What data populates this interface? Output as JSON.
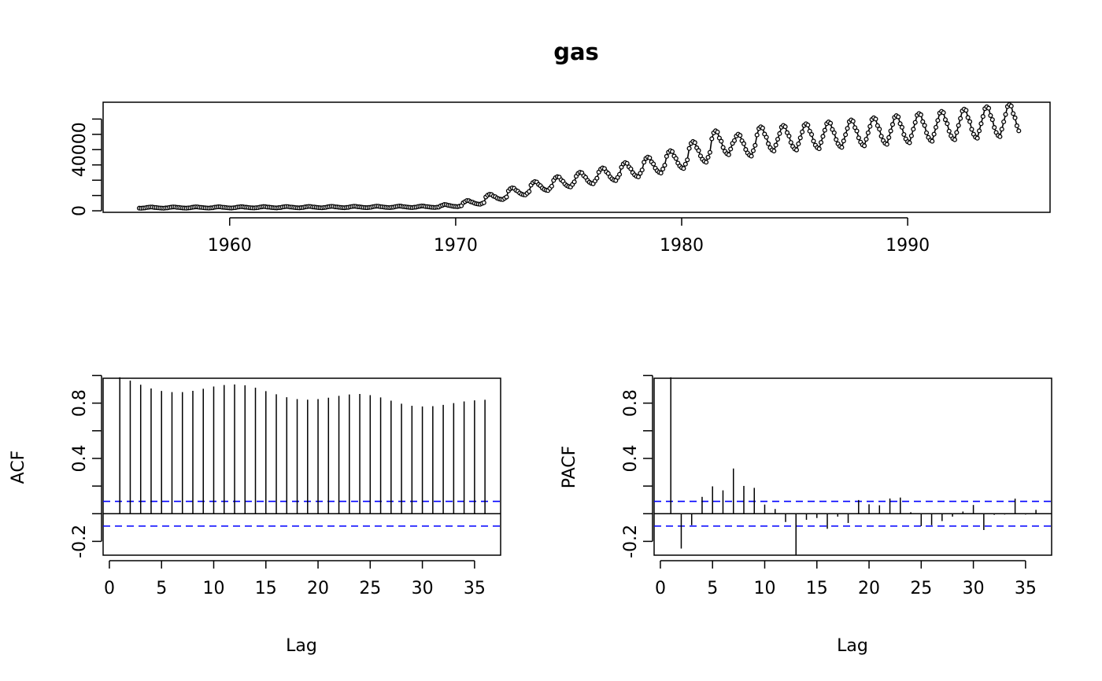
{
  "chart_data": [
    {
      "type": "line",
      "title": "gas",
      "xlabel": "",
      "ylabel": "",
      "xlim": [
        1954.4,
        1996.3
      ],
      "ylim": [
        -1000,
        71000
      ],
      "x_ticks": [
        "1960",
        "1970",
        "1980",
        "1990"
      ],
      "x_tick_values": [
        1960,
        1970,
        1980,
        1990
      ],
      "y_ticks": [
        "0",
        "40000"
      ],
      "y_tick_values": [
        0,
        40000
      ],
      "y_minor_tick_values": [
        10000,
        20000,
        30000,
        50000,
        60000
      ],
      "frequency": 12,
      "start": 1956,
      "series": [
        {
          "name": "gas",
          "marker": "open-circle",
          "values": [
            1709,
            1646,
            1794,
            1878,
            2173,
            2321,
            2468,
            2416,
            2184,
            2121,
            1962,
            1825,
            1751,
            1688,
            1837,
            1920,
            2215,
            2374,
            2520,
            2466,
            2234,
            2171,
            2011,
            1873,
            1790,
            1727,
            1876,
            1961,
            2263,
            2425,
            2575,
            2520,
            2281,
            2216,
            2052,
            1912,
            1829,
            1764,
            1917,
            2003,
            2311,
            2476,
            2629,
            2573,
            2329,
            2262,
            2095,
            1952,
            1868,
            1802,
            1957,
            2045,
            2359,
            2527,
            2683,
            2626,
            2377,
            2309,
            2138,
            1992,
            1906,
            1839,
            1997,
            2087,
            2407,
            2579,
            2738,
            2679,
            2425,
            2356,
            2181,
            2032,
            1945,
            1876,
            2038,
            2129,
            2456,
            2632,
            2794,
            2734,
            2474,
            2403,
            2225,
            2073,
            1985,
            1914,
            2079,
            2172,
            2506,
            2685,
            2851,
            2789,
            2524,
            2451,
            2270,
            2115,
            2024,
            1952,
            2121,
            2216,
            2556,
            2739,
            2908,
            2845,
            2575,
            2500,
            2315,
            2157,
            2065,
            1991,
            2163,
            2260,
            2607,
            2794,
            2966,
            2902,
            2626,
            2550,
            2361,
            2200,
            2106,
            2031,
            2206,
            2305,
            2659,
            2850,
            3026,
            2960,
            2679,
            2601,
            2408,
            2244,
            2148,
            2071,
            2250,
            2351,
            2712,
            2907,
            3086,
            3019,
            2732,
            2653,
            2456,
            2289,
            2191,
            2113,
            2295,
            2398,
            2766,
            2965,
            3148,
            3080,
            2787,
            2706,
            2505,
            2335,
            2234,
            2155,
            2341,
            2446,
            3200,
            3600,
            4100,
            4000,
            3600,
            3400,
            3100,
            2900,
            2800,
            2700,
            3000,
            3300,
            5200,
            6000,
            6700,
            6600,
            5900,
            5600,
            5000,
            4600,
            4400,
            4300,
            4800,
            5300,
            9000,
            10200,
            10800,
            10600,
            9600,
            9200,
            8300,
            7800,
            7500,
            7400,
            8200,
            9000,
            13000,
            14400,
            15000,
            14700,
            13400,
            12800,
            11600,
            10900,
            10500,
            10400,
            11500,
            12600,
            16800,
            18400,
            19100,
            18800,
            17200,
            16400,
            14900,
            14000,
            13500,
            13300,
            14700,
            16100,
            19900,
            21600,
            22300,
            22000,
            20200,
            19300,
            17500,
            16500,
            15900,
            15600,
            17200,
            18900,
            22600,
            24400,
            25200,
            24800,
            22900,
            21900,
            19900,
            18700,
            18000,
            17700,
            19500,
            21300,
            25300,
            27200,
            28000,
            27600,
            25500,
            24400,
            22200,
            20900,
            20100,
            19800,
            21800,
            23800,
            28500,
            30600,
            31500,
            31000,
            28700,
            27400,
            25000,
            23500,
            22600,
            22200,
            24500,
            26700,
            31800,
            34200,
            35100,
            34600,
            32000,
            30600,
            27900,
            26200,
            25200,
            24700,
            27300,
            29800,
            35600,
            38300,
            39300,
            38700,
            35800,
            34200,
            31200,
            29300,
            28200,
            27700,
            30500,
            33300,
            40800,
            44100,
            45300,
            44600,
            41200,
            39400,
            35900,
            33700,
            32400,
            31800,
            35000,
            38200,
            47100,
            51000,
            52300,
            51500,
            47600,
            45500,
            41400,
            38900,
            37400,
            36700,
            40400,
            44100,
            45900,
            48900,
            50100,
            49300,
            45800,
            43900,
            40100,
            37800,
            36400,
            35800,
            39300,
            42800,
            49600,
            53800,
            54900,
            54100,
            50200,
            48100,
            43900,
            41300,
            39800,
            39100,
            43000,
            46800,
            50500,
            54700,
            55800,
            55000,
            51100,
            48900,
            44700,
            42100,
            40500,
            39800,
            43800,
            47700,
            51600,
            55800,
            56900,
            56100,
            52100,
            49900,
            45600,
            42900,
            41300,
            40600,
            44700,
            48700,
            52700,
            57000,
            58100,
            57300,
            53200,
            51000,
            46600,
            43800,
            42200,
            41500,
            45700,
            49800,
            53900,
            58300,
            59400,
            58600,
            54400,
            52200,
            47700,
            44900,
            43200,
            42500,
            46800,
            51000,
            55200,
            59700,
            60800,
            60000,
            55700,
            53400,
            48800,
            45900,
            44200,
            43500,
            47900,
            52200,
            56500,
            61100,
            62200,
            61400,
            57000,
            54600,
            49900,
            47000,
            45200,
            44500,
            49000,
            53400,
            57800,
            62500,
            63600,
            62800,
            58300,
            55800,
            51000,
            48000,
            46200,
            45500,
            50100,
            54600,
            59100,
            63900,
            65000,
            64200,
            59600,
            57000,
            52100,
            49000,
            47200,
            46500,
            51200,
            55800,
            60400,
            65300,
            66500,
            65700,
            61000,
            58300,
            53300,
            50100,
            48200,
            47500,
            52300,
            57000,
            61700,
            66800,
            68000,
            67100,
            62300,
            59600,
            54500,
            51200,
            49300,
            48500,
            53400,
            58200,
            63000,
            68200,
            69400,
            68500,
            63600,
            60800,
            55600,
            52300
          ]
        }
      ]
    },
    {
      "type": "bar",
      "title": "",
      "xlabel": "Lag",
      "ylabel": "ACF",
      "xlim": [
        -0.6,
        37.5
      ],
      "ylim": [
        -0.3,
        0.98
      ],
      "x_ticks": [
        "0",
        "5",
        "10",
        "15",
        "20",
        "25",
        "30",
        "35"
      ],
      "x_tick_values": [
        0,
        5,
        10,
        15,
        20,
        25,
        30,
        35
      ],
      "y_ticks": [
        "-0.2",
        "0.4",
        "0.8"
      ],
      "y_tick_values": [
        -0.2,
        0.4,
        0.8
      ],
      "y_minor_tick_values": [
        0.0,
        0.2,
        0.6,
        1.0
      ],
      "conf_limit": 0.0895,
      "conf_color": "#0000ff",
      "lags": [
        1,
        2,
        3,
        4,
        5,
        6,
        7,
        8,
        9,
        10,
        11,
        12,
        13,
        14,
        15,
        16,
        17,
        18,
        19,
        20,
        21,
        22,
        23,
        24,
        25,
        26,
        27,
        28,
        29,
        30,
        31,
        32,
        33,
        34,
        35,
        36
      ],
      "values": [
        0.987,
        0.963,
        0.933,
        0.906,
        0.888,
        0.88,
        0.88,
        0.889,
        0.904,
        0.92,
        0.931,
        0.935,
        0.929,
        0.912,
        0.887,
        0.864,
        0.843,
        0.829,
        0.825,
        0.829,
        0.839,
        0.853,
        0.863,
        0.866,
        0.858,
        0.841,
        0.818,
        0.796,
        0.781,
        0.776,
        0.778,
        0.787,
        0.8,
        0.812,
        0.82,
        0.824
      ]
    },
    {
      "type": "bar",
      "title": "",
      "xlabel": "Lag",
      "ylabel": "PACF",
      "xlim": [
        -0.6,
        37.5
      ],
      "ylim": [
        -0.3,
        0.98
      ],
      "x_ticks": [
        "0",
        "5",
        "10",
        "15",
        "20",
        "25",
        "30",
        "35"
      ],
      "x_tick_values": [
        0,
        5,
        10,
        15,
        20,
        25,
        30,
        35
      ],
      "y_ticks": [
        "-0.2",
        "0.4",
        "0.8"
      ],
      "y_tick_values": [
        -0.2,
        0.4,
        0.8
      ],
      "y_minor_tick_values": [
        0.0,
        0.2,
        0.6,
        1.0
      ],
      "conf_limit": 0.0895,
      "conf_color": "#0000ff",
      "lags": [
        1,
        2,
        3,
        4,
        5,
        6,
        7,
        8,
        9,
        10,
        11,
        12,
        13,
        14,
        15,
        16,
        17,
        18,
        19,
        20,
        21,
        22,
        23,
        24,
        25,
        26,
        27,
        28,
        29,
        30,
        31,
        32,
        33,
        34,
        35,
        36
      ],
      "values": [
        0.987,
        -0.252,
        -0.083,
        0.122,
        0.198,
        0.169,
        0.327,
        0.201,
        0.187,
        0.066,
        0.034,
        -0.06,
        -0.299,
        -0.044,
        -0.031,
        -0.109,
        -0.021,
        -0.067,
        0.099,
        0.068,
        0.061,
        0.11,
        0.117,
        0.011,
        -0.089,
        -0.083,
        -0.053,
        -0.021,
        0.016,
        0.063,
        -0.118,
        -0.008,
        -0.006,
        0.109,
        -0.006,
        0.028
      ]
    }
  ]
}
